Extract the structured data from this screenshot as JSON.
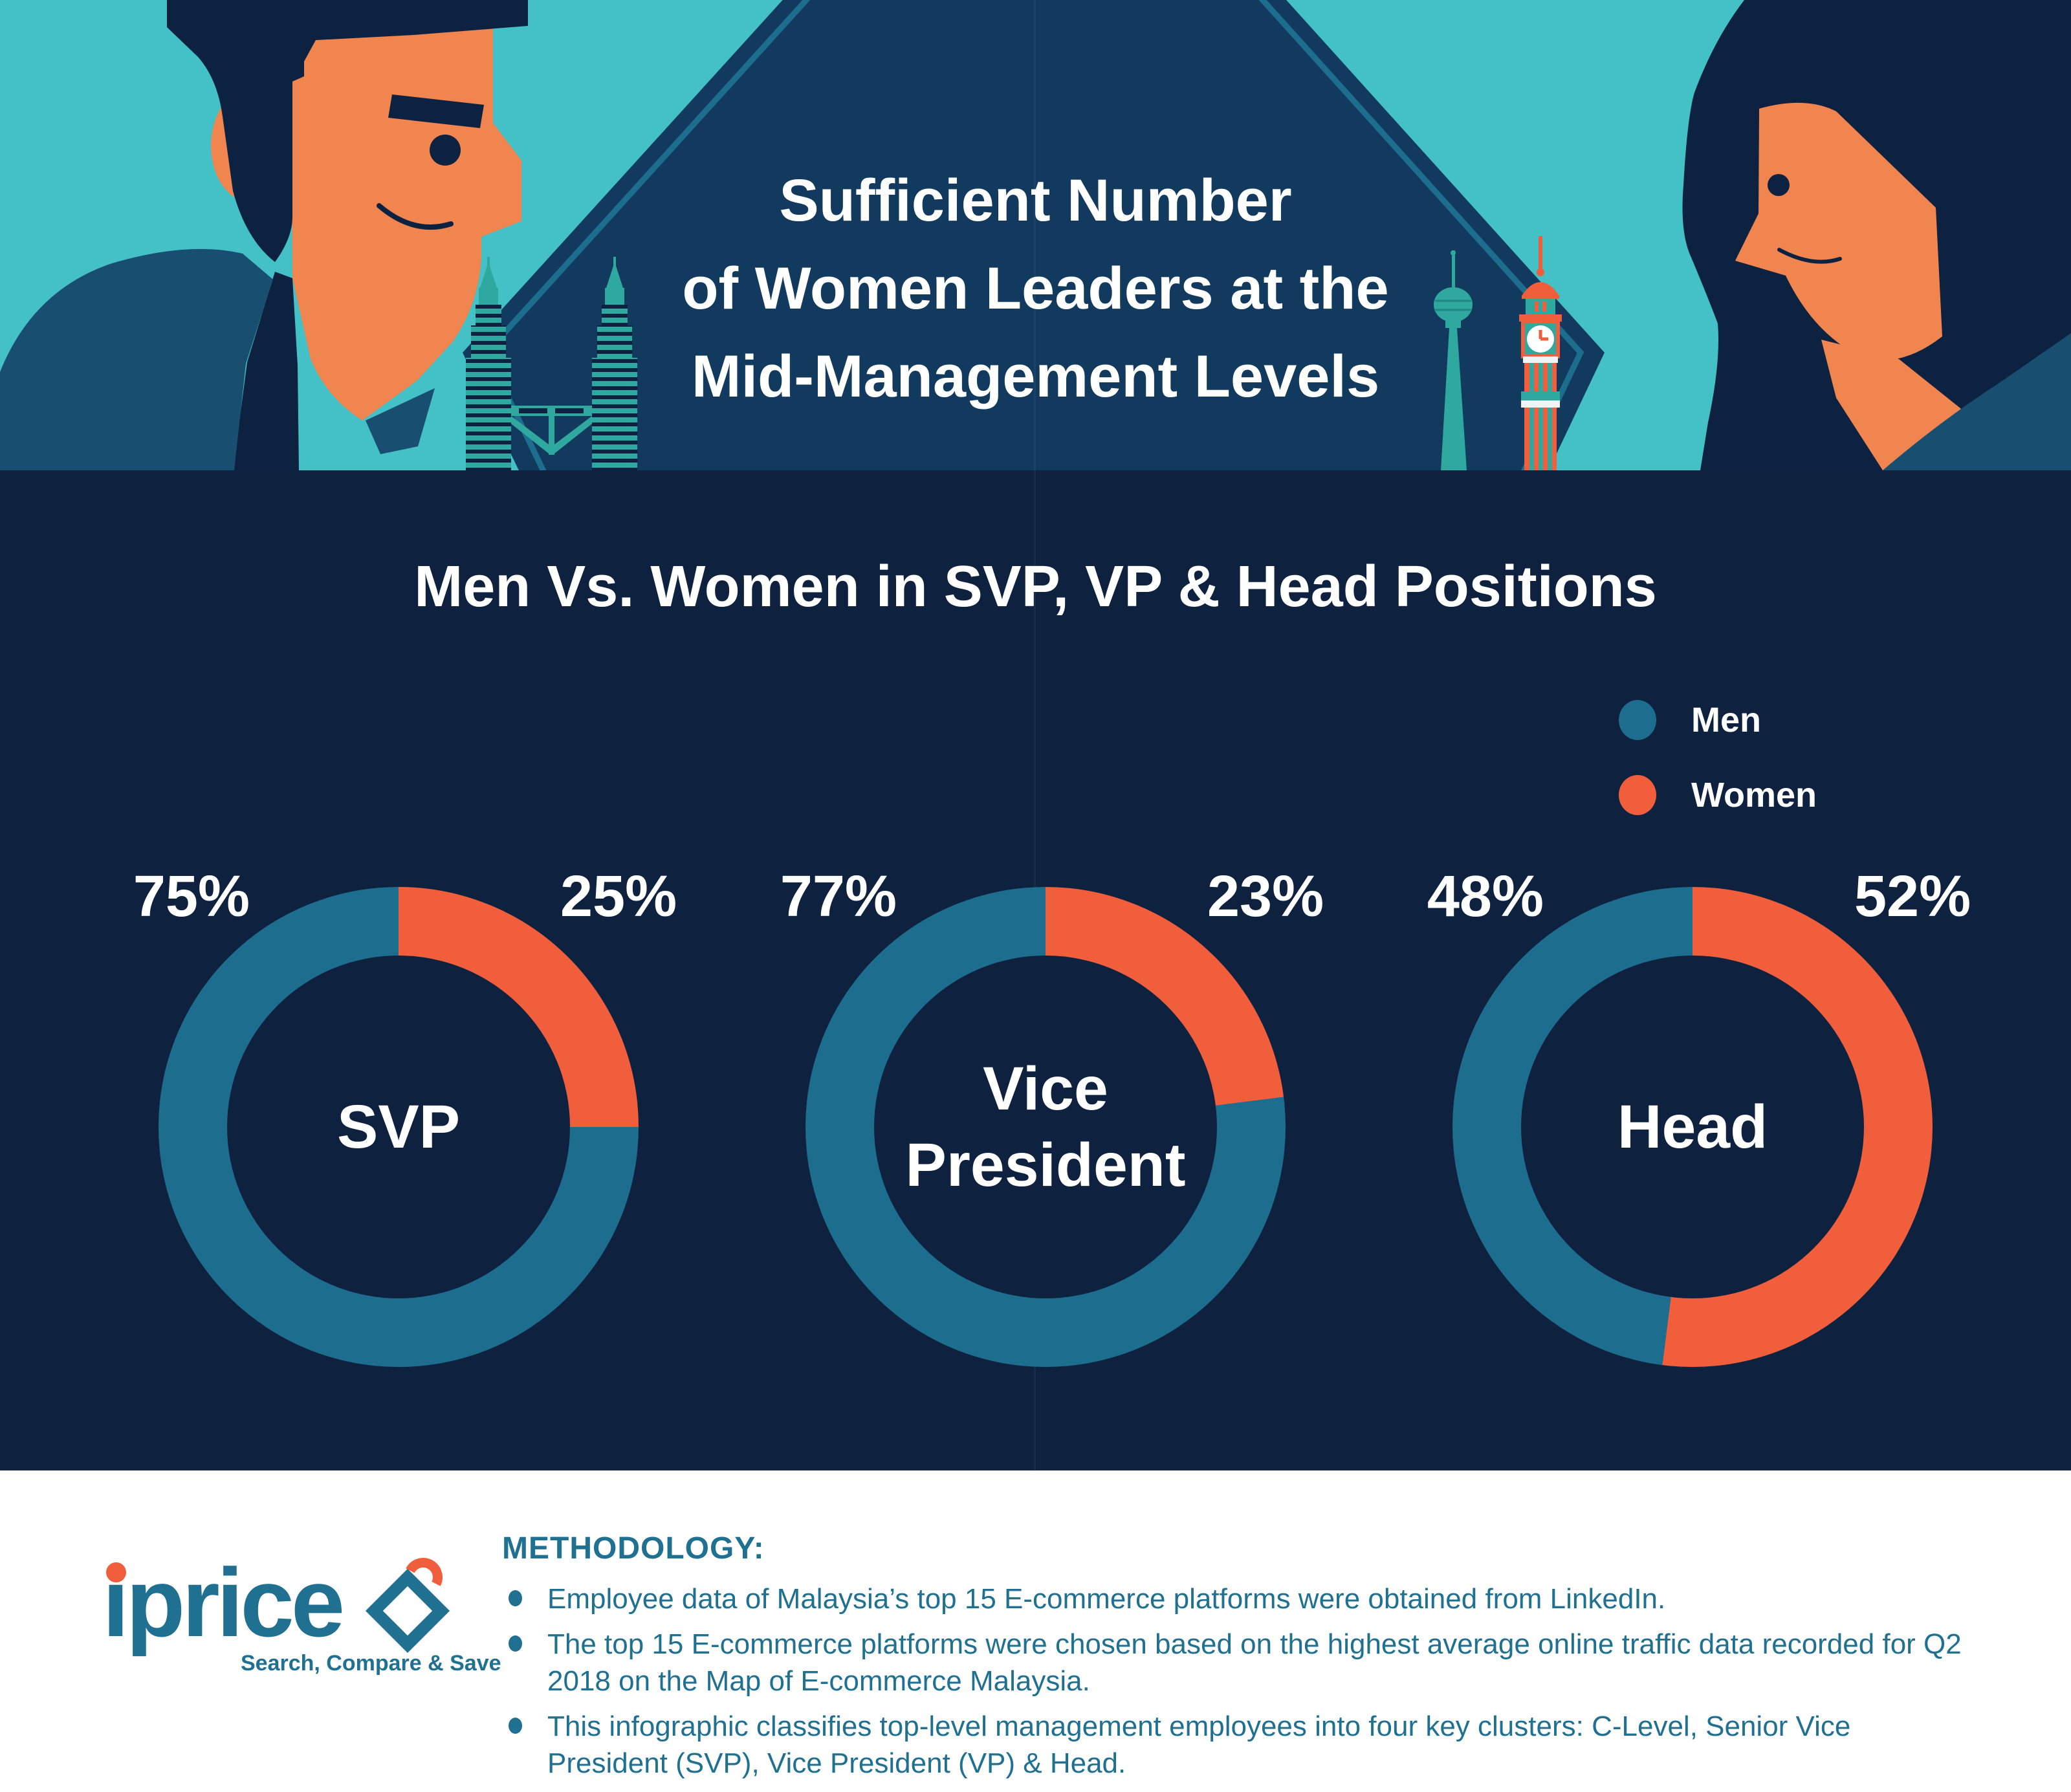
{
  "banner": {
    "title_lines": [
      "Sufficient Number",
      "of Women Leaders at the",
      "Mid-Management Levels"
    ]
  },
  "main": {
    "heading": "Men Vs. Women in SVP, VP & Head Positions",
    "legend": [
      {
        "label": "Men",
        "color": "#1d6d8e"
      },
      {
        "label": "Women",
        "color": "#f15e3c"
      }
    ]
  },
  "theme": {
    "men_color": "#1d6d8e",
    "women_color": "#f15e3c",
    "banner_teal": "#44c1c6",
    "navy_bg": "#0e2240",
    "footer_text_color": "#1f7091",
    "accent_orange": "#f15e3c"
  },
  "donuts": [
    {
      "label": "SVP",
      "men_pct": "75%",
      "women_pct": "25%",
      "women_value": 25
    },
    {
      "label": "Vice\nPresident",
      "men_pct": "77%",
      "women_pct": "23%",
      "women_value": 23
    },
    {
      "label": "Head",
      "men_pct": "48%",
      "women_pct": "52%",
      "women_value": 52
    }
  ],
  "chart_data": {
    "type": "pie",
    "subtype": "donut",
    "title": "Men Vs. Women in SVP, VP & Head Positions",
    "unit": "percent",
    "legend": [
      "Men",
      "Women"
    ],
    "legend_position": "top-right",
    "charts": [
      {
        "label": "SVP",
        "series": [
          {
            "name": "Men",
            "value": 75
          },
          {
            "name": "Women",
            "value": 25
          }
        ]
      },
      {
        "label": "Vice President",
        "series": [
          {
            "name": "Men",
            "value": 77
          },
          {
            "name": "Women",
            "value": 23
          }
        ]
      },
      {
        "label": "Head",
        "series": [
          {
            "name": "Men",
            "value": 48
          },
          {
            "name": "Women",
            "value": 52
          }
        ]
      }
    ]
  },
  "footer": {
    "logo_text": "iprice",
    "logo_tagline": "Search, Compare & Save",
    "methodology_title": "METHODOLOGY:",
    "bullets": [
      "Employee data of Malaysia’s top 15 E-commerce platforms were obtained from LinkedIn.",
      "The top 15 E-commerce platforms were chosen based on the highest average online traffic data recorded for Q2 2018 on the Map of E-commerce Malaysia.",
      "This infographic classifies top-level management employees into four key clusters: C-Level, Senior Vice President (SVP), Vice President (VP) & Head."
    ]
  }
}
